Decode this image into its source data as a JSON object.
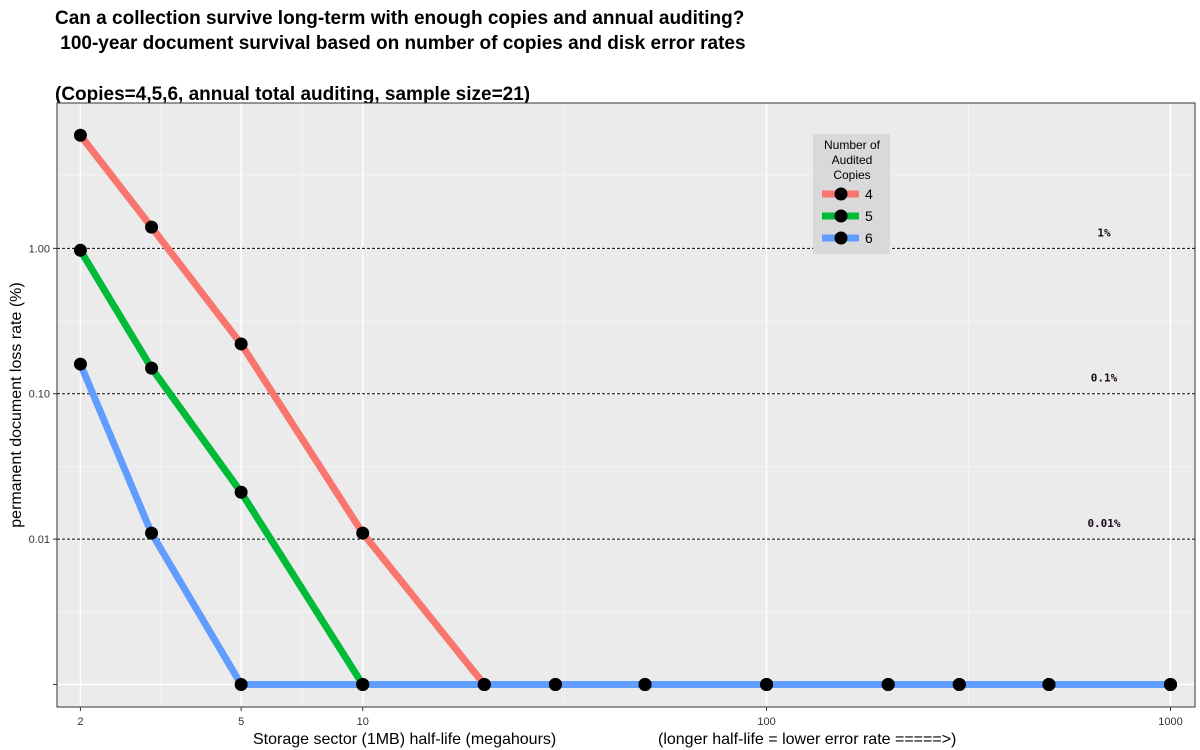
{
  "chart_data": {
    "type": "line",
    "title_lines": [
      "Can a collection survive long-term with enough copies and annual auditing?",
      " 100-year document survival based on number of copies and disk error rates",
      "(Copies=4,5,6, annual total auditing, sample size=21)"
    ],
    "xlabel": "Storage sector (1MB) half-life (megahours)",
    "xlabel_note": "(longer half-life = lower error rate =====>)",
    "ylabel": "permanent document loss rate (%)",
    "x_scale": "log",
    "y_scale": "log",
    "xlim": [
      1.75,
      1150
    ],
    "ylim": [
      0.0007,
      10
    ],
    "x_ticks": [
      2,
      5,
      10,
      100,
      1000
    ],
    "x_tick_labels": [
      "2",
      "5",
      "10",
      "100",
      "1000"
    ],
    "y_ticks": [
      0.001,
      0.01,
      0.1,
      1
    ],
    "y_tick_labels": [
      "",
      "0.01",
      "0.10",
      "1.00"
    ],
    "grid": true,
    "reference_lines": [
      {
        "y": 1,
        "label": "1%"
      },
      {
        "y": 0.1,
        "label": "0.1%"
      },
      {
        "y": 0.01,
        "label": "0.01%"
      }
    ],
    "legend": {
      "title_lines": [
        "Number of",
        "Audited",
        "Copies"
      ],
      "placement": "top-center-right"
    },
    "series": [
      {
        "name": "4",
        "color": "#f8766d",
        "points": [
          [
            2,
            6.0
          ],
          [
            3,
            1.4
          ],
          [
            5,
            0.22
          ],
          [
            10,
            0.011
          ],
          [
            20,
            0.001
          ],
          [
            30,
            0.001
          ],
          [
            50,
            0.001
          ],
          [
            100,
            0.001
          ],
          [
            200,
            0.001
          ],
          [
            300,
            0.001
          ],
          [
            500,
            0.001
          ],
          [
            1000,
            0.001
          ]
        ]
      },
      {
        "name": "5",
        "color": "#00ba38",
        "points": [
          [
            2,
            0.97
          ],
          [
            3,
            0.15
          ],
          [
            5,
            0.021
          ],
          [
            10,
            0.001
          ],
          [
            20,
            0.001
          ],
          [
            30,
            0.001
          ],
          [
            50,
            0.001
          ],
          [
            100,
            0.001
          ],
          [
            200,
            0.001
          ],
          [
            300,
            0.001
          ],
          [
            500,
            0.001
          ],
          [
            1000,
            0.001
          ]
        ]
      },
      {
        "name": "6",
        "color": "#619cff",
        "points": [
          [
            2,
            0.16
          ],
          [
            3,
            0.011
          ],
          [
            5,
            0.001
          ],
          [
            10,
            0.001
          ],
          [
            20,
            0.001
          ],
          [
            30,
            0.001
          ],
          [
            50,
            0.001
          ],
          [
            100,
            0.001
          ],
          [
            200,
            0.001
          ],
          [
            300,
            0.001
          ],
          [
            500,
            0.001
          ],
          [
            1000,
            0.001
          ]
        ]
      }
    ]
  }
}
